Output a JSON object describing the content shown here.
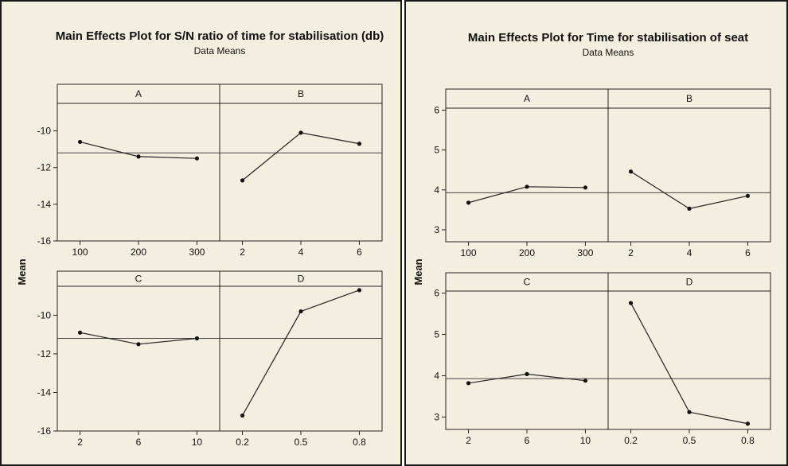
{
  "chart_data": [
    {
      "type": "line",
      "title": "Main Effects Plot for S/N ratio of time for stabilisation (db)",
      "subtitle": "Data Means",
      "ylabel": "Mean",
      "ylim": [
        -16,
        -8.5
      ],
      "yticks": [
        -10,
        -12,
        -14,
        -16
      ],
      "grand_mean": -11.2,
      "panels": [
        {
          "factor": "A",
          "categories": [
            "100",
            "200",
            "300"
          ],
          "values": [
            -10.6,
            -11.4,
            -11.5
          ]
        },
        {
          "factor": "B",
          "categories": [
            "2",
            "4",
            "6"
          ],
          "values": [
            -12.7,
            -10.1,
            -10.7
          ]
        },
        {
          "factor": "C",
          "categories": [
            "2",
            "6",
            "10"
          ],
          "values": [
            -10.9,
            -11.5,
            -11.2
          ]
        },
        {
          "factor": "D",
          "categories": [
            "0.2",
            "0.5",
            "0.8"
          ],
          "values": [
            -15.2,
            -9.8,
            -8.7
          ]
        }
      ]
    },
    {
      "type": "line",
      "title": "Main Effects Plot for Time for stabilisation of seat",
      "subtitle": "Data Means",
      "ylabel": "Mean",
      "ylim": [
        2.7,
        6.05
      ],
      "yticks": [
        6,
        5,
        4,
        3
      ],
      "grand_mean": 3.93,
      "panels": [
        {
          "factor": "A",
          "categories": [
            "100",
            "200",
            "300"
          ],
          "values": [
            3.68,
            4.08,
            4.06
          ]
        },
        {
          "factor": "B",
          "categories": [
            "2",
            "4",
            "6"
          ],
          "values": [
            4.46,
            3.53,
            3.85
          ]
        },
        {
          "factor": "C",
          "categories": [
            "2",
            "6",
            "10"
          ],
          "values": [
            3.82,
            4.04,
            3.88
          ]
        },
        {
          "factor": "D",
          "categories": [
            "0.2",
            "0.5",
            "0.8"
          ],
          "values": [
            5.76,
            3.12,
            2.84
          ]
        }
      ]
    }
  ]
}
